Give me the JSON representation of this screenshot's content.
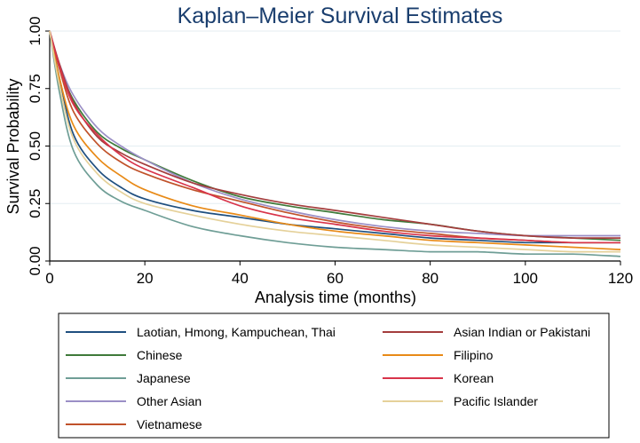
{
  "chart_data": {
    "type": "line",
    "title": "Kaplan–Meier Survival Estimates",
    "xlabel": "Analysis time (months)",
    "ylabel": "Survival Probability",
    "xlim": [
      0,
      120
    ],
    "ylim": [
      0,
      1
    ],
    "x_ticks": [
      "0",
      "20",
      "40",
      "60",
      "80",
      "100",
      "120"
    ],
    "y_ticks": [
      "0.00",
      "0.25",
      "0.50",
      "0.75",
      "1.00"
    ],
    "grid": true,
    "legend_position": "bottom",
    "x": [
      0,
      2,
      5,
      10,
      15,
      20,
      30,
      40,
      50,
      60,
      70,
      80,
      90,
      100,
      110,
      120
    ],
    "series": [
      {
        "name": "Laotian, Hmong, Kampuchean, Thai",
        "color": "#1f4f7f",
        "values": [
          1.0,
          0.8,
          0.55,
          0.4,
          0.32,
          0.27,
          0.22,
          0.19,
          0.16,
          0.14,
          0.12,
          0.1,
          0.09,
          0.08,
          0.08,
          0.08
        ]
      },
      {
        "name": "Chinese",
        "color": "#3f7a3a",
        "values": [
          1.0,
          0.85,
          0.7,
          0.56,
          0.49,
          0.44,
          0.35,
          0.28,
          0.24,
          0.21,
          0.18,
          0.16,
          0.13,
          0.11,
          0.1,
          0.09
        ]
      },
      {
        "name": "Japanese",
        "color": "#6f9e96",
        "values": [
          1.0,
          0.74,
          0.48,
          0.33,
          0.26,
          0.22,
          0.15,
          0.11,
          0.08,
          0.06,
          0.05,
          0.04,
          0.04,
          0.03,
          0.03,
          0.02
        ]
      },
      {
        "name": "Other Asian",
        "color": "#9b8fc6",
        "values": [
          1.0,
          0.86,
          0.72,
          0.58,
          0.5,
          0.44,
          0.34,
          0.27,
          0.22,
          0.18,
          0.15,
          0.13,
          0.12,
          0.11,
          0.11,
          0.11
        ]
      },
      {
        "name": "Vietnamese",
        "color": "#c0522a",
        "values": [
          1.0,
          0.84,
          0.65,
          0.51,
          0.43,
          0.38,
          0.31,
          0.26,
          0.21,
          0.17,
          0.14,
          0.12,
          0.1,
          0.09,
          0.08,
          0.08
        ]
      },
      {
        "name": "Asian Indian or Pakistani",
        "color": "#a43d3d",
        "values": [
          1.0,
          0.86,
          0.69,
          0.54,
          0.47,
          0.42,
          0.34,
          0.29,
          0.25,
          0.22,
          0.19,
          0.16,
          0.13,
          0.11,
          0.1,
          0.1
        ]
      },
      {
        "name": "Filipino",
        "color": "#e88a17",
        "values": [
          1.0,
          0.8,
          0.59,
          0.45,
          0.37,
          0.31,
          0.24,
          0.2,
          0.16,
          0.13,
          0.11,
          0.09,
          0.08,
          0.07,
          0.06,
          0.05
        ]
      },
      {
        "name": "Korean",
        "color": "#d8344a",
        "values": [
          1.0,
          0.85,
          0.68,
          0.55,
          0.46,
          0.4,
          0.32,
          0.24,
          0.19,
          0.16,
          0.13,
          0.11,
          0.1,
          0.09,
          0.08,
          0.08
        ]
      },
      {
        "name": "Pacific Islander",
        "color": "#e5d19a",
        "values": [
          1.0,
          0.77,
          0.53,
          0.38,
          0.3,
          0.25,
          0.2,
          0.16,
          0.13,
          0.11,
          0.09,
          0.07,
          0.06,
          0.05,
          0.04,
          0.04
        ]
      }
    ]
  }
}
